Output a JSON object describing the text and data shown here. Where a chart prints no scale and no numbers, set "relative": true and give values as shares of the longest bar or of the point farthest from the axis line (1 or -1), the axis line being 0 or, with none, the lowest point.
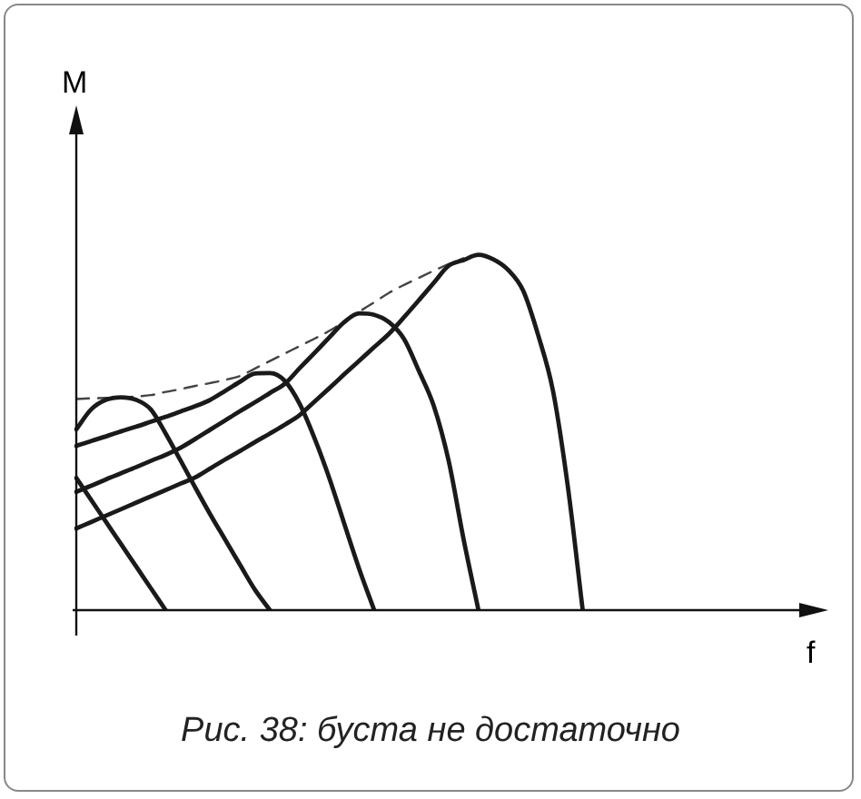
{
  "chart_data": {
    "type": "line",
    "relative": true,
    "legend": false,
    "marker": "none",
    "annotations": [
      "M",
      "f",
      "Рис. 38: буста не достаточно"
    ],
    "categories": [
      null,
      null,
      null,
      null,
      null,
      null,
      null,
      null,
      null,
      null,
      null,
      null,
      null,
      null,
      null,
      null,
      null,
      null,
      null,
      null,
      null,
      null,
      null,
      null,
      null,
      null,
      null,
      null,
      null,
      null,
      null,
      null,
      null,
      null,
      null,
      null
    ],
    "series": [
      {
        "color": "#1a1a1a",
        "line_style": "solid",
        "values": [
          0.372,
          0.31,
          0.248,
          0.186,
          0.124,
          0.062,
          0,
          null,
          null,
          null,
          null,
          null,
          null,
          null,
          null,
          null,
          null,
          null,
          null,
          null,
          null,
          null,
          null,
          null,
          null,
          null,
          null,
          null,
          null,
          null,
          null,
          null,
          null,
          null,
          null,
          null
        ]
      },
      {
        "color": "#1a1a1a",
        "line_style": "solid",
        "values": [
          0.509,
          0.565,
          0.592,
          0.599,
          0.592,
          0.565,
          0.497,
          0.421,
          0.344,
          0.269,
          0.198,
          0.127,
          0.057,
          0,
          null,
          null,
          null,
          null,
          null,
          null,
          null,
          null,
          null,
          null,
          null,
          null,
          null,
          null,
          null,
          null,
          null,
          null,
          null,
          null,
          null,
          null
        ]
      },
      {
        "color": "#1a1a1a",
        "line_style": "solid",
        "values": [
          0.462,
          0.476,
          0.489,
          0.503,
          0.516,
          0.53,
          0.544,
          0.559,
          0.574,
          0.592,
          0.617,
          0.643,
          0.666,
          0.667,
          0.645,
          0.58,
          0.483,
          0.37,
          0.242,
          0.115,
          0,
          null,
          null,
          null,
          null,
          null,
          null,
          null,
          null,
          null,
          null,
          null,
          null,
          null,
          null,
          null
        ]
      },
      {
        "color": "#1a1a1a",
        "line_style": "solid",
        "values": [
          0.333,
          0.35,
          0.368,
          0.385,
          0.402,
          0.42,
          0.437,
          0.457,
          0.482,
          0.508,
          0.534,
          0.56,
          0.585,
          0.611,
          0.637,
          0.681,
          0.724,
          0.768,
          0.811,
          0.835,
          0.831,
          0.81,
          0.763,
          0.673,
          0.575,
          0.42,
          0.2,
          0,
          null,
          null,
          null,
          null,
          null,
          null,
          null,
          null
        ]
      },
      {
        "color": "#1a1a1a",
        "line_style": "solid",
        "values": [
          0.23,
          0.248,
          0.266,
          0.284,
          0.302,
          0.32,
          0.338,
          0.356,
          0.374,
          0.399,
          0.424,
          0.448,
          0.473,
          0.497,
          0.522,
          0.549,
          0.587,
          0.625,
          0.664,
          0.702,
          0.74,
          0.778,
          0.824,
          0.872,
          0.921,
          0.969,
          0.985,
          1,
          0.987,
          0.957,
          0.899,
          0.775,
          0.618,
          0.348,
          0,
          null
        ]
      },
      {
        "color": "#444444",
        "line_style": "dashed",
        "values": [
          0.594,
          0.596,
          0.597,
          0.599,
          0.601,
          0.605,
          0.614,
          0.622,
          0.631,
          0.639,
          0.648,
          0.659,
          0.68,
          0.701,
          0.722,
          0.743,
          0.764,
          0.786,
          0.813,
          0.84,
          0.866,
          0.893,
          0.915,
          0.935,
          0.955,
          0.974,
          0.99,
          null,
          null,
          null,
          null,
          null,
          null,
          null,
          null,
          null
        ]
      }
    ]
  }
}
